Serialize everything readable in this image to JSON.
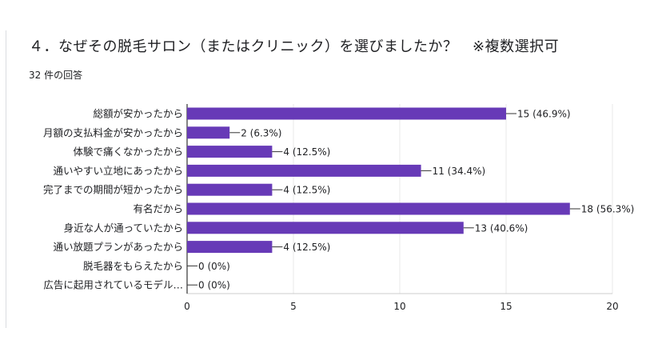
{
  "question": {
    "title": "４．なぜその脱毛サロン（またはクリニック）を選びましたか？　※複数選択可",
    "response_count": "32 件の回答"
  },
  "colors": {
    "bar": "#673ab7",
    "grid": "#e8e8e8",
    "axis": "#333333",
    "text": "#202124"
  },
  "chart_data": {
    "type": "bar",
    "orientation": "horizontal",
    "categories": [
      "総額が安かったから",
      "月額の支払料金が安かったから",
      "体験で痛くなかったから",
      "通いやすい立地にあったから",
      "完了までの期間が短かったから",
      "有名だから",
      "身近な人が通っていたから",
      "通い放題プランがあったから",
      "脱毛器をもらえたから",
      "広告に起用されているモデル…"
    ],
    "values": [
      15,
      2,
      4,
      11,
      4,
      18,
      13,
      4,
      0,
      0
    ],
    "data_labels": [
      "15 (46.9%)",
      "2 (6.3%)",
      "4 (12.5%)",
      "11 (34.4%)",
      "4 (12.5%)",
      "18 (56.3%)",
      "13 (40.6%)",
      "4 (12.5%)",
      "0 (0%)",
      "0 (0%)"
    ],
    "xlim": [
      0,
      20
    ],
    "x_ticks": [
      "0",
      "5",
      "10",
      "15",
      "20"
    ],
    "grid": true
  }
}
